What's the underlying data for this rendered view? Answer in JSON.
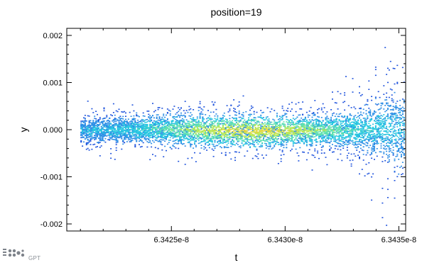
{
  "chart_data": {
    "type": "heatmap",
    "title": "position=19",
    "xlabel": "t",
    "ylabel": "y",
    "xlim": [
      6.34204e-08,
      6.34353e-08
    ],
    "ylim": [
      -0.00215,
      0.00215
    ],
    "xticks": [
      {
        "value": 6.3425e-08,
        "label": "6.3425e-8"
      },
      {
        "value": 6.343e-08,
        "label": "6.3430e-8"
      },
      {
        "value": 6.3435e-08,
        "label": "6.3435e-8"
      }
    ],
    "yticks": [
      {
        "value": 0.002,
        "label": "0.002"
      },
      {
        "value": 0.001,
        "label": "0.001"
      },
      {
        "value": 0.0,
        "label": "0.000"
      },
      {
        "value": -0.001,
        "label": "-0.001"
      },
      {
        "value": -0.002,
        "label": "-0.002"
      }
    ],
    "density_profile": {
      "description_points_t": [
        6.3421e-08,
        6.3423e-08,
        6.3426e-08,
        6.3429e-08,
        6.3432e-08,
        6.34335e-08,
        6.3435e-08
      ],
      "core_halfwidth": [
        0.00025,
        0.00028,
        0.00033,
        0.00033,
        0.0003,
        0.00045,
        0.0008
      ],
      "outlier_halfwidth": [
        0.0006,
        0.0006,
        0.0007,
        0.0008,
        0.0008,
        0.0015,
        0.0022
      ]
    },
    "colormap": [
      "#2255dd",
      "#2f8fe6",
      "#27c7e0",
      "#5fe0b0",
      "#b8e85a",
      "#e6d43a"
    ],
    "grid": false,
    "legend": "none"
  },
  "watermark": {
    "text": "GPT"
  }
}
